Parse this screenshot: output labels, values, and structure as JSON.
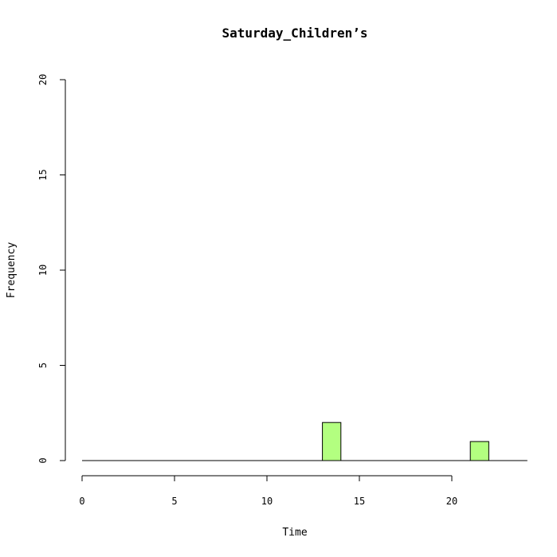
{
  "chart_data": {
    "type": "bar",
    "title": "Saturday_Children’s",
    "xlabel": "Time",
    "ylabel": "Frequency",
    "xlim": [
      0,
      24
    ],
    "ylim": [
      0,
      20
    ],
    "x_ticks": [
      0,
      5,
      10,
      15,
      20
    ],
    "y_ticks": [
      0,
      5,
      10,
      15,
      20
    ],
    "bin_width": 1,
    "bins": [
      {
        "start": 13,
        "end": 14,
        "count": 2
      },
      {
        "start": 21,
        "end": 22,
        "count": 1
      }
    ],
    "bar_color": "#b3ff80",
    "grid": false
  }
}
